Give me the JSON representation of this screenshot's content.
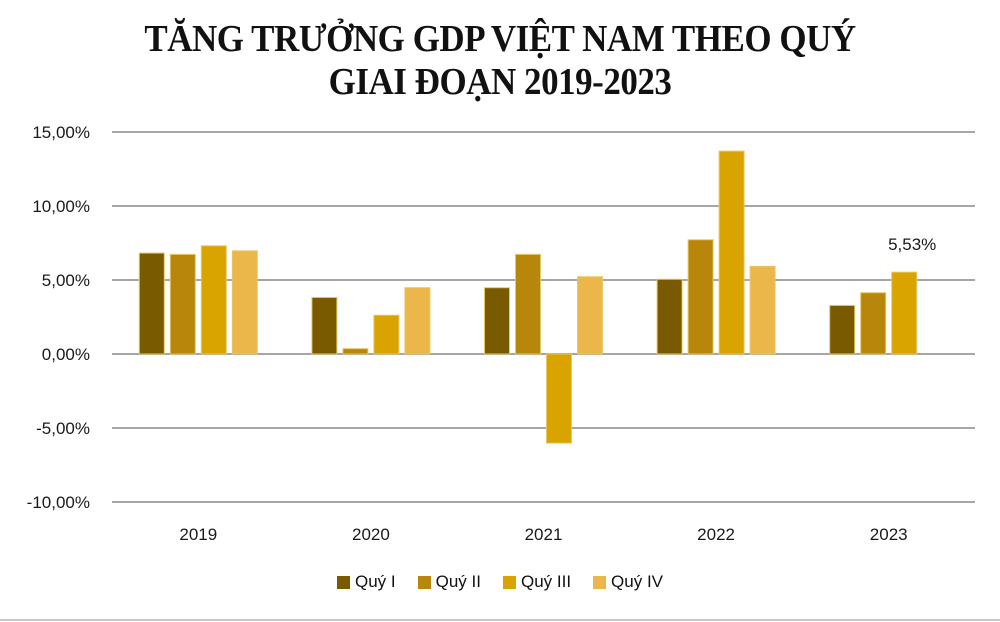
{
  "chart_data": {
    "type": "bar",
    "title": "TĂNG TRƯỞNG GDP VIỆT NAM THEO QUÝ",
    "subtitle": "GIAI ĐOẠN 2019-2023",
    "xlabel": "",
    "ylabel": "",
    "categories": [
      "2019",
      "2020",
      "2021",
      "2022",
      "2023"
    ],
    "series": [
      {
        "name": "Quý I",
        "color": "#7a5a00",
        "values": [
          6.82,
          3.82,
          4.48,
          5.05,
          3.28
        ]
      },
      {
        "name": "Quý II",
        "color": "#b8860b",
        "values": [
          6.73,
          0.36,
          6.73,
          7.72,
          4.14
        ]
      },
      {
        "name": "Quý III",
        "color": "#d9a300",
        "values": [
          7.31,
          2.62,
          -6.02,
          13.71,
          5.53
        ]
      },
      {
        "name": "Quý IV",
        "color": "#ebb64a",
        "values": [
          6.97,
          4.48,
          5.22,
          5.92,
          null
        ]
      }
    ],
    "ylim": [
      -10,
      15
    ],
    "yticks": [
      15,
      10,
      5,
      0,
      -5,
      -10
    ],
    "ytick_labels": [
      "15,00%",
      "10,00%",
      "5,00%",
      "0,00%",
      "-5,00%",
      "-10,00%"
    ],
    "grid": true,
    "legend_position": "bottom",
    "annotations": [
      {
        "series": "Quý III",
        "category": "2023",
        "text": "5,53%"
      }
    ]
  }
}
